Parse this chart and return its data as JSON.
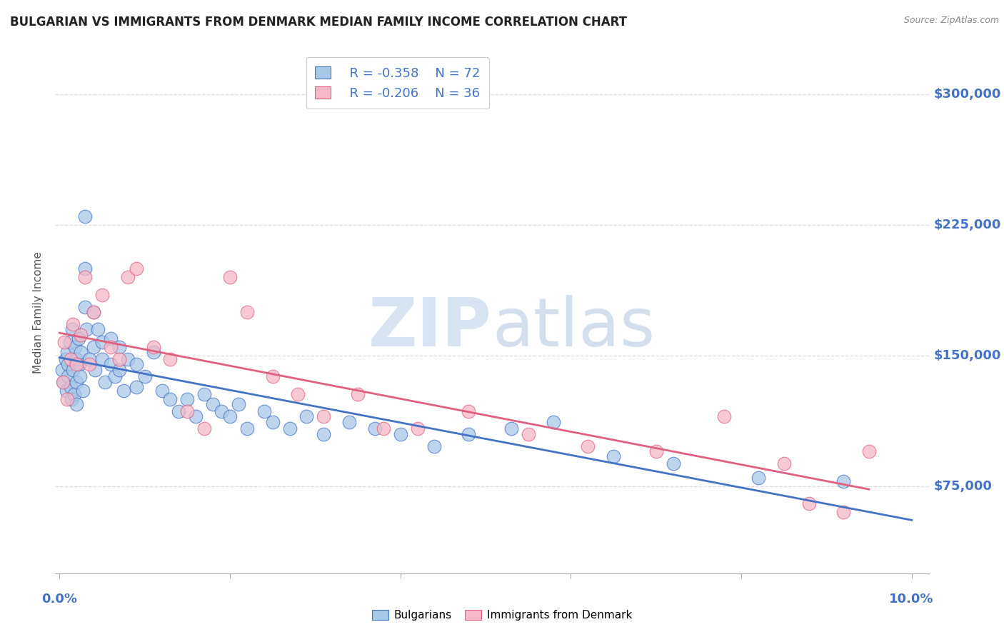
{
  "title": "BULGARIAN VS IMMIGRANTS FROM DENMARK MEDIAN FAMILY INCOME CORRELATION CHART",
  "source": "Source: ZipAtlas.com",
  "ylabel": "Median Family Income",
  "yticks": [
    75000,
    150000,
    225000,
    300000
  ],
  "ytick_labels": [
    "$75,000",
    "$150,000",
    "$225,000",
    "$300,000"
  ],
  "ylim": [
    25000,
    325000
  ],
  "xlim": [
    -0.0005,
    0.102
  ],
  "xticks": [
    0.0,
    0.02,
    0.04,
    0.06,
    0.08,
    0.1
  ],
  "legend1_R": "R = -0.358",
  "legend1_N": "N = 72",
  "legend2_R": "R = -0.206",
  "legend2_N": "N = 36",
  "color_blue": "#a8c8e8",
  "color_pink": "#f4b8c8",
  "color_blue_dark": "#4472c4",
  "color_pink_dark": "#e06080",
  "color_axis_label": "#4472c4",
  "watermark_color": "#d0dff0",
  "grid_color": "#dddddd",
  "bulgarians_x": [
    0.0003,
    0.0005,
    0.0007,
    0.0008,
    0.0009,
    0.001,
    0.001,
    0.0012,
    0.0013,
    0.0014,
    0.0015,
    0.0016,
    0.0017,
    0.0018,
    0.002,
    0.002,
    0.002,
    0.0022,
    0.0023,
    0.0024,
    0.0025,
    0.0027,
    0.003,
    0.003,
    0.003,
    0.0032,
    0.0035,
    0.004,
    0.004,
    0.0042,
    0.0045,
    0.005,
    0.005,
    0.0053,
    0.006,
    0.006,
    0.0065,
    0.007,
    0.007,
    0.0075,
    0.008,
    0.009,
    0.009,
    0.01,
    0.011,
    0.012,
    0.013,
    0.014,
    0.015,
    0.016,
    0.017,
    0.018,
    0.019,
    0.02,
    0.021,
    0.022,
    0.024,
    0.025,
    0.027,
    0.029,
    0.031,
    0.034,
    0.037,
    0.04,
    0.044,
    0.048,
    0.053,
    0.058,
    0.065,
    0.072,
    0.082,
    0.092
  ],
  "bulgarians_y": [
    142000,
    135000,
    148000,
    130000,
    152000,
    145000,
    138000,
    158000,
    132000,
    125000,
    165000,
    142000,
    128000,
    155000,
    148000,
    135000,
    122000,
    160000,
    145000,
    138000,
    152000,
    130000,
    230000,
    200000,
    178000,
    165000,
    148000,
    175000,
    155000,
    142000,
    165000,
    158000,
    148000,
    135000,
    160000,
    145000,
    138000,
    155000,
    142000,
    130000,
    148000,
    145000,
    132000,
    138000,
    152000,
    130000,
    125000,
    118000,
    125000,
    115000,
    128000,
    122000,
    118000,
    115000,
    122000,
    108000,
    118000,
    112000,
    108000,
    115000,
    105000,
    112000,
    108000,
    105000,
    98000,
    105000,
    108000,
    112000,
    92000,
    88000,
    80000,
    78000
  ],
  "denmark_x": [
    0.0004,
    0.0006,
    0.0009,
    0.0013,
    0.0016,
    0.002,
    0.0025,
    0.003,
    0.0035,
    0.004,
    0.005,
    0.006,
    0.007,
    0.008,
    0.009,
    0.011,
    0.013,
    0.015,
    0.017,
    0.02,
    0.022,
    0.025,
    0.028,
    0.031,
    0.035,
    0.038,
    0.042,
    0.048,
    0.055,
    0.062,
    0.07,
    0.078,
    0.085,
    0.088,
    0.092,
    0.095
  ],
  "denmark_y": [
    135000,
    158000,
    125000,
    148000,
    168000,
    145000,
    162000,
    195000,
    145000,
    175000,
    185000,
    155000,
    148000,
    195000,
    200000,
    155000,
    148000,
    118000,
    108000,
    195000,
    175000,
    138000,
    128000,
    115000,
    128000,
    108000,
    108000,
    118000,
    105000,
    98000,
    95000,
    115000,
    88000,
    65000,
    60000,
    95000
  ]
}
